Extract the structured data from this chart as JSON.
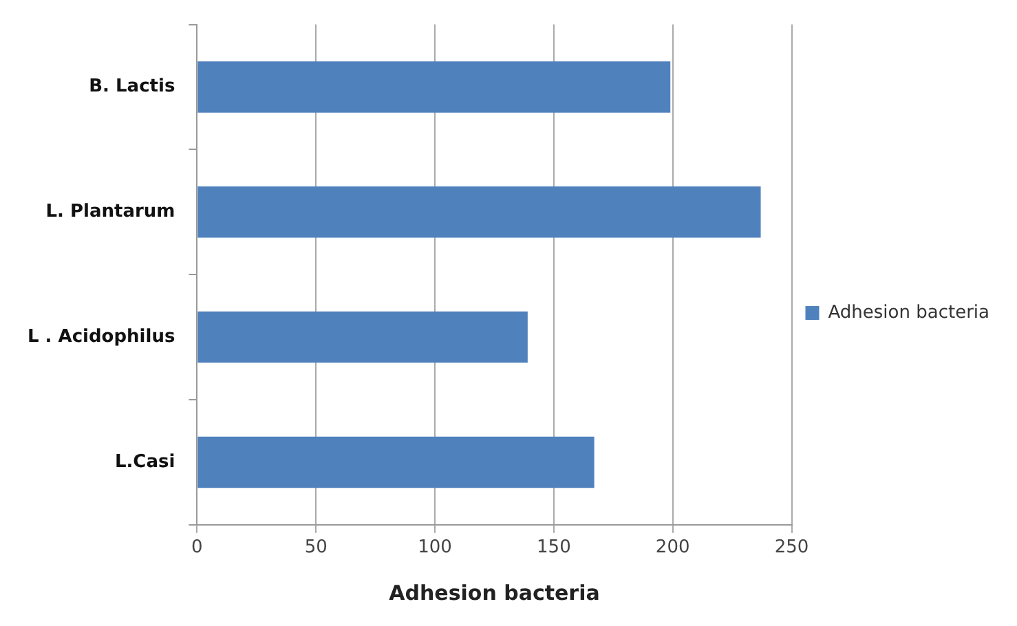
{
  "chart_data": {
    "type": "bar",
    "orientation": "horizontal",
    "xlabel": "Adhesion bacteria",
    "categories": [
      "B. Lactis",
      "L. Plantarum",
      "L . Acidophilus",
      "L.Casi"
    ],
    "series": [
      {
        "name": "Adhesion bacteria",
        "color": "#4f81bd",
        "values": [
          199,
          237,
          139,
          167
        ]
      }
    ],
    "xlim": [
      0,
      250
    ],
    "xticks": [
      0,
      50,
      100,
      150,
      200,
      250
    ],
    "grid": "x",
    "legend": "right"
  }
}
